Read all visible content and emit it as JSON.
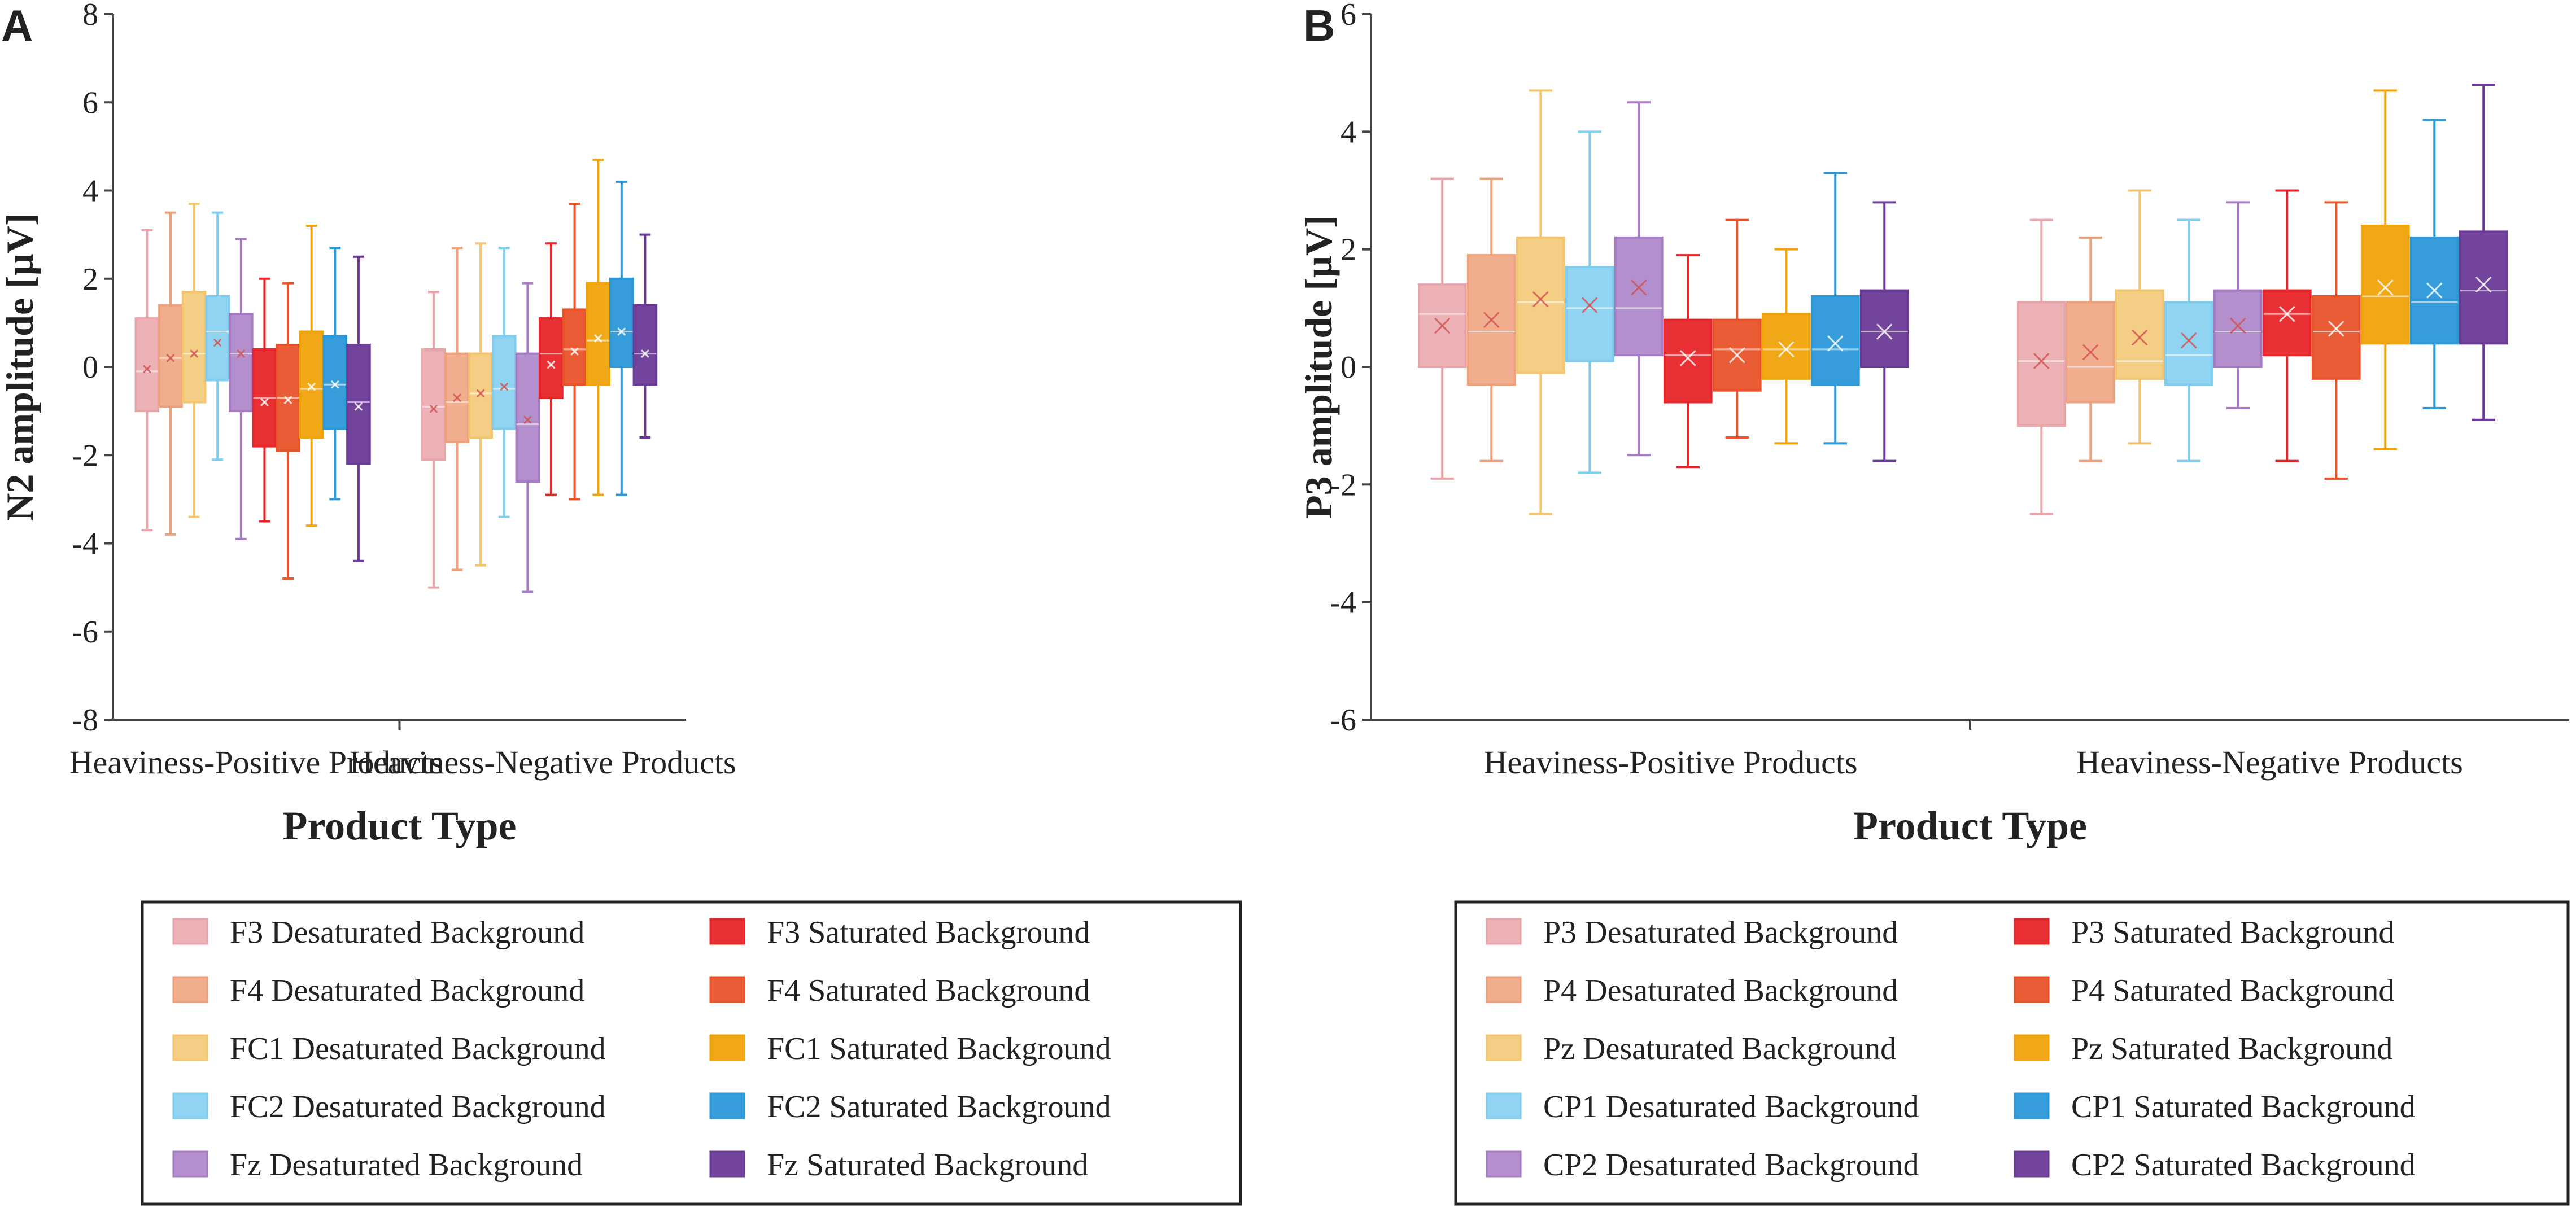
{
  "chart_data": [
    {
      "panel": "A",
      "type": "box",
      "title": "",
      "xlabel": "Product Type",
      "ylabel": "N2 amplitude [µV]",
      "ylim": [
        -8,
        8
      ],
      "yticks": [
        "-8",
        "-6",
        "-4",
        "-2",
        "0",
        "2",
        "4",
        "6",
        "8"
      ],
      "categories": [
        "Heaviness-Positive Products",
        "Heaviness-Negative  Products"
      ],
      "series": [
        {
          "name": "F3 Desaturated Background",
          "color": "#e9a4a9",
          "stats": [
            {
              "min": -3.7,
              "q1": -1.0,
              "median": -0.1,
              "q3": 1.1,
              "max": 3.1,
              "mean": -0.05
            },
            {
              "min": -5.0,
              "q1": -2.1,
              "median": -0.9,
              "q3": 0.4,
              "max": 1.7,
              "mean": -0.95
            }
          ]
        },
        {
          "name": "F4 Desaturated Background",
          "color": "#eea07b",
          "stats": [
            {
              "min": -3.8,
              "q1": -0.9,
              "median": 0.2,
              "q3": 1.4,
              "max": 3.5,
              "mean": 0.2
            },
            {
              "min": -4.6,
              "q1": -1.7,
              "median": -0.8,
              "q3": 0.3,
              "max": 2.7,
              "mean": -0.7
            }
          ]
        },
        {
          "name": "FC1 Desaturated Background",
          "color": "#f2c56e",
          "stats": [
            {
              "min": -3.4,
              "q1": -0.8,
              "median": 0.3,
              "q3": 1.7,
              "max": 3.7,
              "mean": 0.3
            },
            {
              "min": -4.5,
              "q1": -1.6,
              "median": -0.6,
              "q3": 0.3,
              "max": 2.8,
              "mean": -0.6
            }
          ]
        },
        {
          "name": "FC2 Desaturated Background",
          "color": "#7ecdef",
          "stats": [
            {
              "min": -2.1,
              "q1": -0.3,
              "median": 0.8,
              "q3": 1.6,
              "max": 3.5,
              "mean": 0.55
            },
            {
              "min": -3.4,
              "q1": -1.4,
              "median": -0.5,
              "q3": 0.7,
              "max": 2.7,
              "mean": -0.45
            }
          ]
        },
        {
          "name": "Fz Desaturated Background",
          "color": "#a67bc4",
          "stats": [
            {
              "min": -3.9,
              "q1": -1.0,
              "median": 0.3,
              "q3": 1.2,
              "max": 2.9,
              "mean": 0.3
            },
            {
              "min": -5.1,
              "q1": -2.6,
              "median": -1.3,
              "q3": 0.3,
              "max": 1.9,
              "mean": -1.2
            }
          ]
        },
        {
          "name": "F3 Saturated Background",
          "color": "#e8262a",
          "stats": [
            {
              "min": -3.5,
              "q1": -1.8,
              "median": -0.7,
              "q3": 0.4,
              "max": 2.0,
              "mean": -0.8
            },
            {
              "min": -2.9,
              "q1": -0.7,
              "median": 0.3,
              "q3": 1.1,
              "max": 2.8,
              "mean": 0.05
            }
          ]
        },
        {
          "name": "F4 Saturated Background",
          "color": "#e8532a",
          "stats": [
            {
              "min": -4.8,
              "q1": -1.9,
              "median": -0.7,
              "q3": 0.5,
              "max": 1.9,
              "mean": -0.75
            },
            {
              "min": -3.0,
              "q1": -0.4,
              "median": 0.4,
              "q3": 1.3,
              "max": 3.7,
              "mean": 0.35
            }
          ]
        },
        {
          "name": "FC1 Saturated Background",
          "color": "#f0a30a",
          "stats": [
            {
              "min": -3.6,
              "q1": -1.6,
              "median": -0.5,
              "q3": 0.8,
              "max": 3.2,
              "mean": -0.45
            },
            {
              "min": -2.9,
              "q1": -0.4,
              "median": 0.6,
              "q3": 1.9,
              "max": 4.7,
              "mean": 0.65
            }
          ]
        },
        {
          "name": "FC2 Saturated Background",
          "color": "#2b98d8",
          "stats": [
            {
              "min": -3.0,
              "q1": -1.4,
              "median": -0.4,
              "q3": 0.7,
              "max": 2.7,
              "mean": -0.4
            },
            {
              "min": -2.9,
              "q1": 0.0,
              "median": 0.8,
              "q3": 2.0,
              "max": 4.2,
              "mean": 0.8
            }
          ]
        },
        {
          "name": "Fz Saturated Background",
          "color": "#6b3a96",
          "stats": [
            {
              "min": -4.4,
              "q1": -2.2,
              "median": -0.8,
              "q3": 0.5,
              "max": 2.5,
              "mean": -0.9
            },
            {
              "min": -1.6,
              "q1": -0.4,
              "median": 0.3,
              "q3": 1.4,
              "max": 3.0,
              "mean": 0.3
            }
          ]
        }
      ],
      "legend_title": ""
    },
    {
      "panel": "B",
      "type": "box",
      "title": "",
      "xlabel": "Product Type",
      "ylabel": "P3 amplitude [µV]",
      "ylim": [
        -6,
        6
      ],
      "yticks": [
        "-6",
        "-4",
        "-2",
        "0",
        "2",
        "4",
        "6"
      ],
      "categories": [
        "Heaviness-Positive Products",
        "Heaviness-Negative  Products"
      ],
      "series": [
        {
          "name": "P3 Desaturated Background",
          "color": "#e9a4a9",
          "stats": [
            {
              "min": -1.9,
              "q1": 0.0,
              "median": 0.9,
              "q3": 1.4,
              "max": 3.2,
              "mean": 0.7
            },
            {
              "min": -2.5,
              "q1": -1.0,
              "median": 0.1,
              "q3": 1.1,
              "max": 2.5,
              "mean": 0.1
            }
          ]
        },
        {
          "name": "P4 Desaturated Background",
          "color": "#eea07b",
          "stats": [
            {
              "min": -1.6,
              "q1": -0.3,
              "median": 0.6,
              "q3": 1.9,
              "max": 3.2,
              "mean": 0.8
            },
            {
              "min": -1.6,
              "q1": -0.6,
              "median": 0.0,
              "q3": 1.1,
              "max": 2.2,
              "mean": 0.25
            }
          ]
        },
        {
          "name": "Pz Desaturated Background",
          "color": "#f2c56e",
          "stats": [
            {
              "min": -2.5,
              "q1": -0.1,
              "median": 1.1,
              "q3": 2.2,
              "max": 4.7,
              "mean": 1.15
            },
            {
              "min": -1.3,
              "q1": -0.2,
              "median": 0.1,
              "q3": 1.3,
              "max": 3.0,
              "mean": 0.5
            }
          ]
        },
        {
          "name": "CP1 Desaturated Background",
          "color": "#7ecdef",
          "stats": [
            {
              "min": -1.8,
              "q1": 0.1,
              "median": 1.0,
              "q3": 1.7,
              "max": 4.0,
              "mean": 1.05
            },
            {
              "min": -1.6,
              "q1": -0.3,
              "median": 0.2,
              "q3": 1.1,
              "max": 2.5,
              "mean": 0.45
            }
          ]
        },
        {
          "name": "CP2 Desaturated Background",
          "color": "#a67bc4",
          "stats": [
            {
              "min": -1.5,
              "q1": 0.2,
              "median": 1.0,
              "q3": 2.2,
              "max": 4.5,
              "mean": 1.35
            },
            {
              "min": -0.7,
              "q1": 0.0,
              "median": 0.6,
              "q3": 1.3,
              "max": 2.8,
              "mean": 0.7
            }
          ]
        },
        {
          "name": "P3 Saturated Background",
          "color": "#e8262a",
          "stats": [
            {
              "min": -1.7,
              "q1": -0.6,
              "median": 0.2,
              "q3": 0.8,
              "max": 1.9,
              "mean": 0.15
            },
            {
              "min": -1.6,
              "q1": 0.2,
              "median": 0.9,
              "q3": 1.3,
              "max": 3.0,
              "mean": 0.9
            }
          ]
        },
        {
          "name": "P4 Saturated Background",
          "color": "#e8532a",
          "stats": [
            {
              "min": -1.2,
              "q1": -0.4,
              "median": 0.3,
              "q3": 0.8,
              "max": 2.5,
              "mean": 0.2
            },
            {
              "min": -1.9,
              "q1": -0.2,
              "median": 0.6,
              "q3": 1.2,
              "max": 2.8,
              "mean": 0.65
            }
          ]
        },
        {
          "name": "Pz Saturated Background",
          "color": "#f0a30a",
          "stats": [
            {
              "min": -1.3,
              "q1": -0.2,
              "median": 0.3,
              "q3": 0.9,
              "max": 2.0,
              "mean": 0.3
            },
            {
              "min": -1.4,
              "q1": 0.4,
              "median": 1.2,
              "q3": 2.4,
              "max": 4.7,
              "mean": 1.35
            }
          ]
        },
        {
          "name": "CP1 Saturated Background",
          "color": "#2b98d8",
          "stats": [
            {
              "min": -1.3,
              "q1": -0.3,
              "median": 0.3,
              "q3": 1.2,
              "max": 3.3,
              "mean": 0.4
            },
            {
              "min": -0.7,
              "q1": 0.4,
              "median": 1.1,
              "q3": 2.2,
              "max": 4.2,
              "mean": 1.3
            }
          ]
        },
        {
          "name": "CP2 Saturated Background",
          "color": "#6b3a96",
          "stats": [
            {
              "min": -1.6,
              "q1": 0.0,
              "median": 0.6,
              "q3": 1.3,
              "max": 2.8,
              "mean": 0.6
            },
            {
              "min": -0.9,
              "q1": 0.4,
              "median": 1.3,
              "q3": 2.3,
              "max": 4.8,
              "mean": 1.4
            }
          ]
        }
      ],
      "legend_title": ""
    }
  ]
}
